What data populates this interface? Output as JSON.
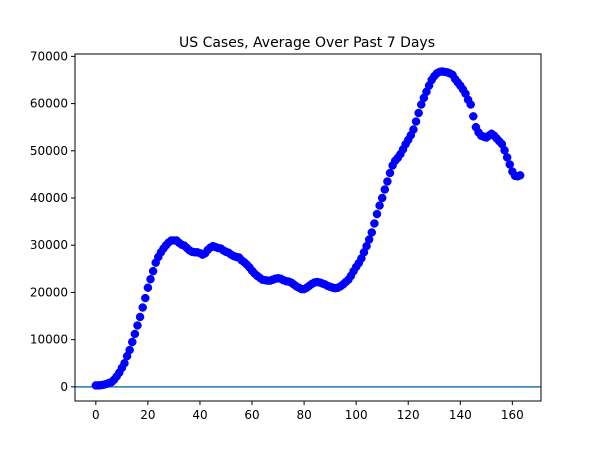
{
  "chart_data": {
    "type": "scatter",
    "title": "US Cases, Average Over Past 7 Days",
    "xlabel": "",
    "ylabel": "",
    "xlim": [
      -8,
      171
    ],
    "ylim": [
      -3000,
      70500
    ],
    "xticks": [
      0,
      20,
      40,
      60,
      80,
      100,
      120,
      140,
      160
    ],
    "yticks": [
      0,
      10000,
      20000,
      30000,
      40000,
      50000,
      60000,
      70000
    ],
    "grid": false,
    "marker_color": "#0000ff",
    "baseline": {
      "y": 0,
      "color": "#1f77b4"
    },
    "series": [
      {
        "x": [
          0,
          1,
          2,
          3,
          4,
          5,
          6,
          7,
          8,
          9,
          10,
          11,
          12,
          13,
          14,
          15,
          16,
          17,
          18,
          19,
          20,
          21,
          22,
          23,
          24,
          25,
          26,
          27,
          28,
          29,
          30,
          31,
          32,
          33,
          34,
          35,
          36,
          37,
          38,
          39,
          40,
          41,
          42,
          43,
          44,
          45,
          46,
          47,
          48,
          49,
          50,
          51,
          52,
          53,
          54,
          55,
          56,
          57,
          58,
          59,
          60,
          61,
          62,
          63,
          64,
          65,
          66,
          67,
          68,
          69,
          70,
          71,
          72,
          73,
          74,
          75,
          76,
          77,
          78,
          79,
          80,
          81,
          82,
          83,
          84,
          85,
          86,
          87,
          88,
          89,
          90,
          91,
          92,
          93,
          94,
          95,
          96,
          97,
          98,
          99,
          100,
          101,
          102,
          103,
          104,
          105,
          106,
          107,
          108,
          109,
          110,
          111,
          112,
          113,
          114,
          115,
          116,
          117,
          118,
          119,
          120,
          121,
          122,
          123,
          124,
          125,
          126,
          127,
          128,
          129,
          130,
          131,
          132,
          133,
          134,
          135,
          136,
          137,
          138,
          139,
          140,
          141,
          142,
          143,
          144,
          145,
          146,
          147,
          148,
          149,
          150,
          151,
          152,
          153,
          154,
          155,
          156,
          157,
          158,
          159,
          160,
          161,
          162,
          163
        ],
        "y": [
          300,
          300,
          350,
          450,
          600,
          800,
          1000,
          1500,
          2200,
          3000,
          4000,
          5000,
          6500,
          7800,
          9500,
          11200,
          13000,
          14800,
          16800,
          18800,
          21000,
          22800,
          24500,
          26300,
          27500,
          28500,
          29300,
          30000,
          30600,
          31000,
          31000,
          31000,
          30500,
          30100,
          29900,
          29400,
          28900,
          28600,
          28500,
          28500,
          28300,
          28000,
          28300,
          29000,
          29500,
          29800,
          29600,
          29400,
          29300,
          28900,
          28600,
          28400,
          28000,
          27700,
          27500,
          27400,
          26800,
          26400,
          25900,
          25300,
          24600,
          24000,
          23500,
          23100,
          22700,
          22600,
          22500,
          22500,
          22700,
          22900,
          23000,
          22900,
          22600,
          22400,
          22300,
          22100,
          21700,
          21300,
          21000,
          20700,
          20700,
          21000,
          21400,
          21800,
          22100,
          22200,
          22100,
          21900,
          21700,
          21400,
          21200,
          21000,
          20900,
          21000,
          21300,
          21700,
          22200,
          22700,
          23500,
          24500,
          25400,
          26200,
          27200,
          28500,
          29800,
          31200,
          32700,
          34600,
          36600,
          38400,
          40000,
          41800,
          43500,
          45300,
          46900,
          47900,
          48500,
          49300,
          50300,
          51400,
          52300,
          53300,
          54500,
          56200,
          58000,
          59800,
          61200,
          62500,
          63800,
          65000,
          65800,
          66400,
          66700,
          66800,
          66700,
          66600,
          66400,
          66100,
          65200,
          64500,
          63800,
          63000,
          62100,
          60800,
          59800,
          57300,
          55000,
          53900,
          53200,
          53000,
          52800,
          53200,
          53600,
          53200,
          52600,
          52000,
          51400,
          50100,
          48600,
          47100,
          45600,
          44700,
          44600,
          44800
        ]
      }
    ]
  }
}
